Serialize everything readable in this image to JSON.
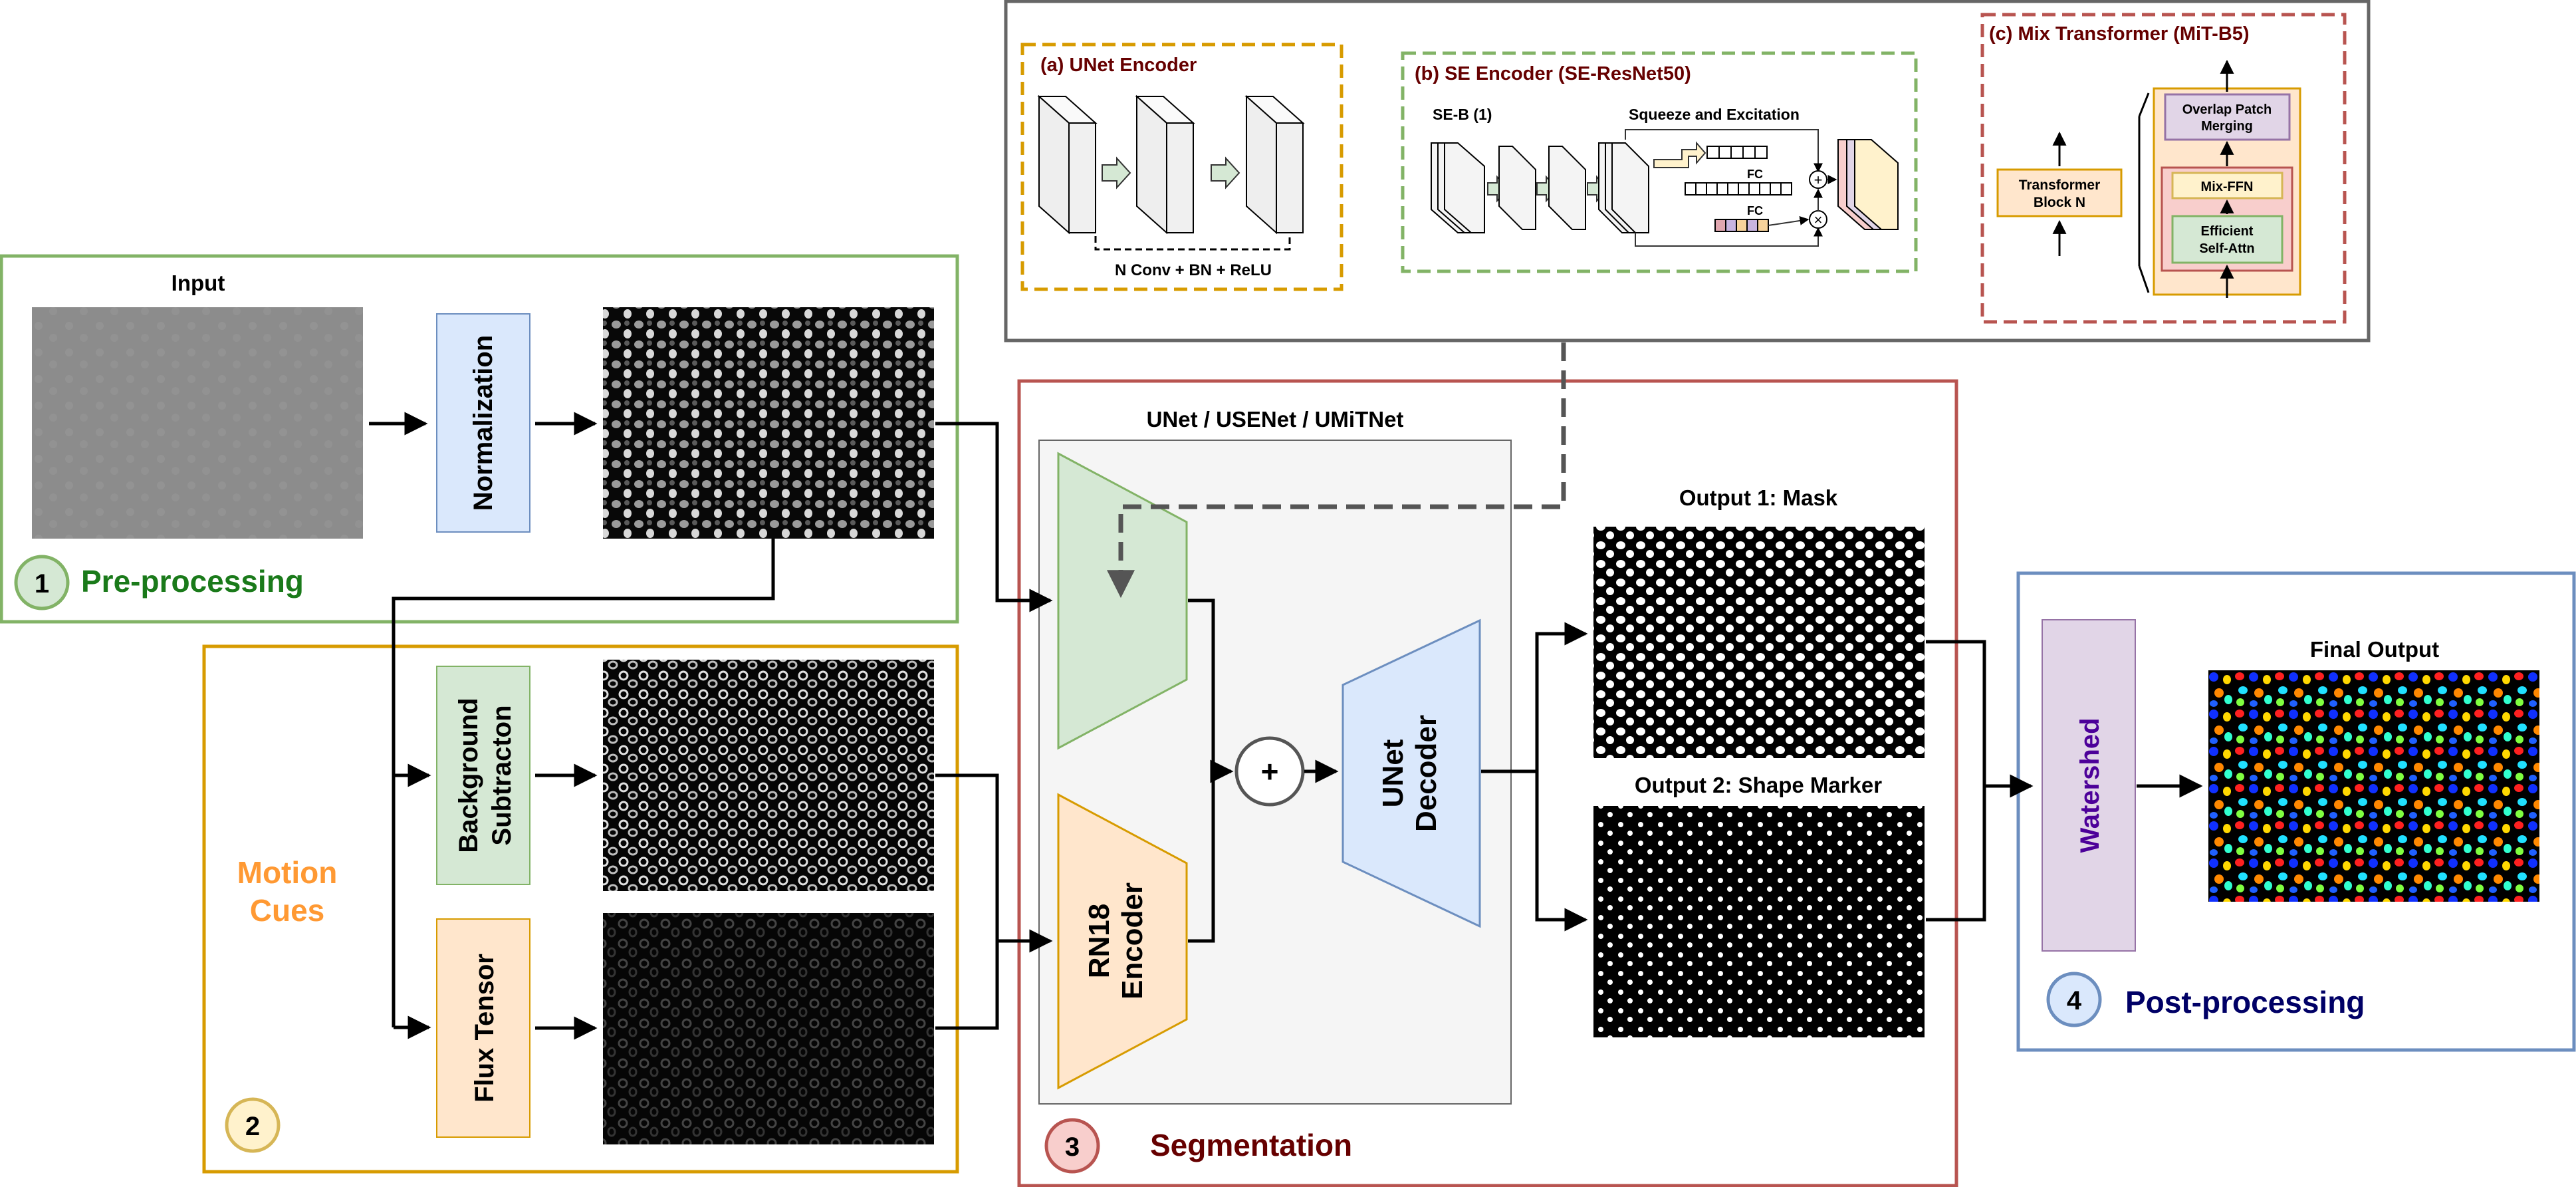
{
  "preprocessing": {
    "number": "1",
    "label": "Pre-processing",
    "input_label": "Input",
    "normalization_label": "Normalization"
  },
  "motion": {
    "number": "2",
    "label_line1": "Motion",
    "label_line2": "Cues",
    "bg_sub_line1": "Background",
    "bg_sub_line2": "Subtracton",
    "flux_label": "Flux Tensor"
  },
  "segmentation": {
    "number": "3",
    "label": "Segmentation",
    "net_title": "UNet / USENet / UMiTNet",
    "rn18_line1": "RN18",
    "rn18_line2": "Encoder",
    "decoder_line1": "UNet",
    "decoder_line2": "Decoder",
    "plus": "+",
    "output1_label": "Output 1: Mask",
    "output2_label": "Output 2: Shape Marker"
  },
  "postprocessing": {
    "number": "4",
    "label": "Post-processing",
    "watershed_label": "Watershed",
    "final_label": "Final Output"
  },
  "encoders": {
    "unet": {
      "title": "(a) UNet Encoder",
      "caption": "N Conv + BN + ReLU"
    },
    "se": {
      "title": "(b) SE Encoder (SE-ResNet50)",
      "seb_label": "SE-B (1)",
      "squeeze_label": "Squeeze and Excitation",
      "fc1": "FC",
      "fc2": "FC",
      "plus": "+",
      "times": "×"
    },
    "mit": {
      "title": "(c) Mix Transformer (MiT-B5)",
      "block_line1": "Transformer",
      "block_line2": "Block N",
      "merge_line1": "Overlap Patch",
      "merge_line2": "Merging",
      "ffn": "Mix-FFN",
      "attn_line1": "Efficient",
      "attn_line2": "Self-Attn"
    }
  },
  "colors": {
    "green": "#82b366",
    "orange": "#d79b00",
    "red": "#b85450",
    "blue": "#6c8ebf",
    "gray": "#666666",
    "purple": "#9673a6",
    "label_green": "#1a7a1a",
    "label_orange": "#ff9933",
    "label_red": "#660000",
    "label_blue": "#000066",
    "label_purple": "#4c0099"
  }
}
